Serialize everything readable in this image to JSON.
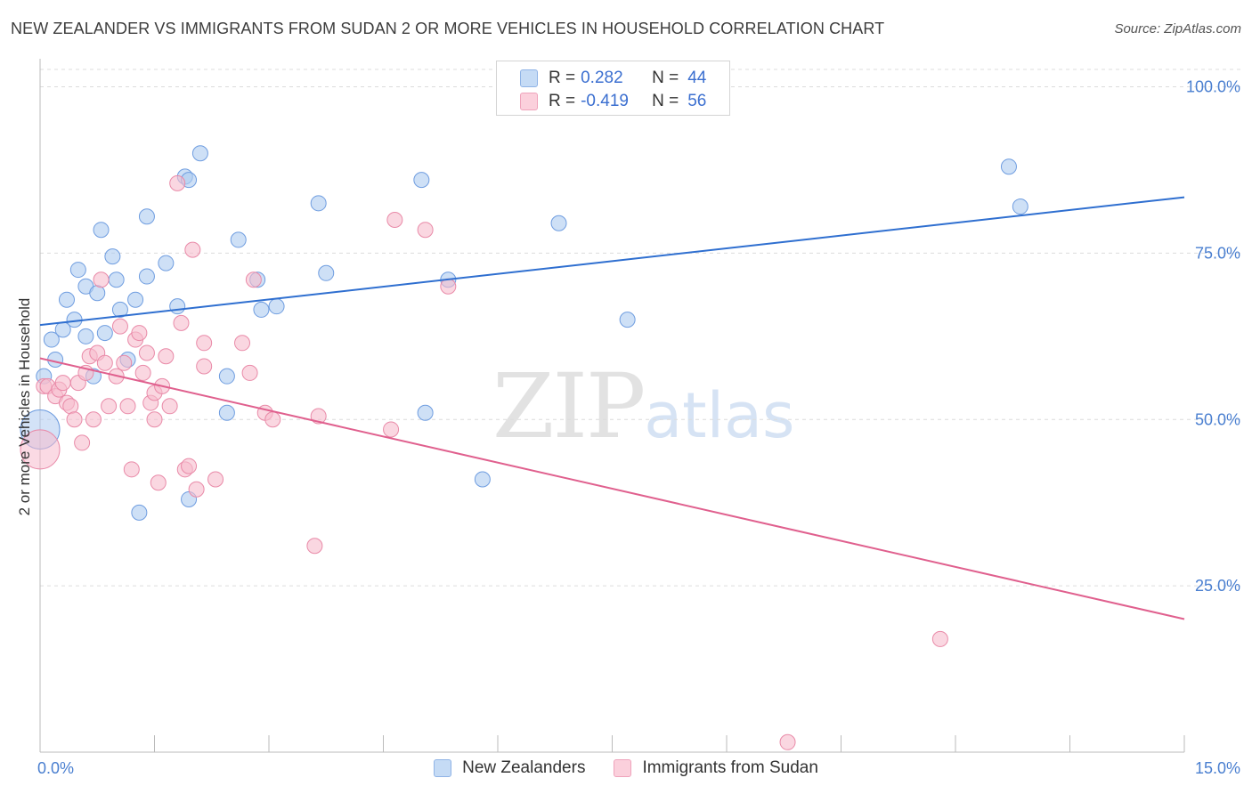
{
  "title": "NEW ZEALANDER VS IMMIGRANTS FROM SUDAN 2 OR MORE VEHICLES IN HOUSEHOLD CORRELATION CHART",
  "source": "Source: ZipAtlas.com",
  "watermark": {
    "zip": "ZIP",
    "atlas": "atlas"
  },
  "legend": {
    "rows": [
      {
        "r_label": "R =",
        "r_value": "0.282",
        "n_label": "N =",
        "n_value": "44"
      },
      {
        "r_label": "R =",
        "r_value": "-0.419",
        "n_label": "N =",
        "n_value": "56"
      }
    ]
  },
  "colors": {
    "blue_fill": "#aecbf0",
    "blue_stroke": "#6f9de0",
    "blue_line": "#2f6fd0",
    "pink_fill": "#f7bccd",
    "pink_stroke": "#e98aa8",
    "pink_line": "#e0608e",
    "grid": "#dcdcdc",
    "tick_text": "#4a7fd0"
  },
  "chart_data": {
    "type": "scatter",
    "title": "NEW ZEALANDER VS IMMIGRANTS FROM SUDAN 2 OR MORE VEHICLES IN HOUSEHOLD CORRELATION CHART",
    "xlabel": "",
    "ylabel": "2 or more Vehicles in Household",
    "xlim": [
      0,
      15
    ],
    "ylim": [
      0,
      105
    ],
    "x_ticks": [
      "0.0%",
      "15.0%"
    ],
    "y_ticks": [
      {
        "value": 25,
        "label": "25.0%"
      },
      {
        "value": 50,
        "label": "50.0%"
      },
      {
        "value": 75,
        "label": "75.0%"
      },
      {
        "value": 100,
        "label": "100.0%"
      }
    ],
    "grid": true,
    "legend_position": "bottom",
    "series": [
      {
        "name": "New Zealanders",
        "color": "#aecbf0",
        "trend": {
          "x": [
            0,
            15
          ],
          "y": [
            64.2,
            83.4
          ]
        },
        "points": [
          [
            0.0,
            48.5,
            "big"
          ],
          [
            0.05,
            56.5
          ],
          [
            0.15,
            62.0
          ],
          [
            0.2,
            59.0
          ],
          [
            0.3,
            63.5
          ],
          [
            0.35,
            68.0
          ],
          [
            0.45,
            65.0
          ],
          [
            0.5,
            72.5
          ],
          [
            0.6,
            62.5
          ],
          [
            0.6,
            70.0
          ],
          [
            0.7,
            56.5
          ],
          [
            0.75,
            69.0
          ],
          [
            0.8,
            78.5
          ],
          [
            0.85,
            63.0
          ],
          [
            0.95,
            74.5
          ],
          [
            1.0,
            71.0
          ],
          [
            1.05,
            66.5
          ],
          [
            1.15,
            59.0
          ],
          [
            1.25,
            68.0
          ],
          [
            1.3,
            36.0
          ],
          [
            1.4,
            71.5
          ],
          [
            1.4,
            80.5
          ],
          [
            1.65,
            73.5
          ],
          [
            1.8,
            67.0
          ],
          [
            1.9,
            86.5
          ],
          [
            1.95,
            38.0
          ],
          [
            1.95,
            86.0
          ],
          [
            2.1,
            90.0
          ],
          [
            2.45,
            51.0
          ],
          [
            2.45,
            56.5
          ],
          [
            2.6,
            77.0
          ],
          [
            2.85,
            71.0
          ],
          [
            2.9,
            66.5
          ],
          [
            3.1,
            67.0
          ],
          [
            3.65,
            82.5
          ],
          [
            3.75,
            72.0
          ],
          [
            5.0,
            86.0
          ],
          [
            5.05,
            51.0
          ],
          [
            5.35,
            71.0
          ],
          [
            5.8,
            41.0
          ],
          [
            6.8,
            79.5
          ],
          [
            7.7,
            65.0
          ],
          [
            12.7,
            88.0
          ],
          [
            12.85,
            82.0
          ]
        ]
      },
      {
        "name": "Immigrants from Sudan",
        "color": "#f7bccd",
        "trend": {
          "x": [
            0,
            15
          ],
          "y": [
            59.2,
            20.0
          ]
        },
        "points": [
          [
            0.0,
            45.5,
            "big"
          ],
          [
            0.05,
            55.0
          ],
          [
            0.1,
            55.0
          ],
          [
            0.2,
            53.5
          ],
          [
            0.25,
            54.5
          ],
          [
            0.3,
            55.5
          ],
          [
            0.35,
            52.5
          ],
          [
            0.4,
            52.0
          ],
          [
            0.45,
            50.0
          ],
          [
            0.5,
            55.5
          ],
          [
            0.55,
            46.5
          ],
          [
            0.6,
            57.0
          ],
          [
            0.65,
            59.5
          ],
          [
            0.7,
            50.0
          ],
          [
            0.75,
            60.0
          ],
          [
            0.8,
            71.0
          ],
          [
            0.85,
            58.5
          ],
          [
            0.9,
            52.0
          ],
          [
            1.0,
            56.5
          ],
          [
            1.05,
            64.0
          ],
          [
            1.1,
            58.5
          ],
          [
            1.15,
            52.0
          ],
          [
            1.2,
            42.5
          ],
          [
            1.25,
            62.0
          ],
          [
            1.3,
            63.0
          ],
          [
            1.35,
            57.0
          ],
          [
            1.4,
            60.0
          ],
          [
            1.45,
            52.5
          ],
          [
            1.5,
            50.0
          ],
          [
            1.5,
            54.0
          ],
          [
            1.55,
            40.5
          ],
          [
            1.6,
            55.0
          ],
          [
            1.65,
            59.5
          ],
          [
            1.7,
            52.0
          ],
          [
            1.8,
            85.5
          ],
          [
            1.85,
            64.5
          ],
          [
            1.9,
            42.5
          ],
          [
            1.95,
            43.0
          ],
          [
            2.0,
            75.5
          ],
          [
            2.05,
            39.5
          ],
          [
            2.15,
            61.5
          ],
          [
            2.15,
            58.0
          ],
          [
            2.3,
            41.0
          ],
          [
            2.65,
            61.5
          ],
          [
            2.75,
            57.0
          ],
          [
            2.8,
            71.0
          ],
          [
            2.95,
            51.0
          ],
          [
            3.05,
            50.0
          ],
          [
            3.6,
            31.0
          ],
          [
            3.65,
            50.5
          ],
          [
            4.6,
            48.5
          ],
          [
            4.65,
            80.0
          ],
          [
            5.05,
            78.5
          ],
          [
            5.35,
            70.0
          ],
          [
            11.8,
            17.0
          ],
          [
            9.8,
            1.5
          ]
        ]
      }
    ]
  }
}
